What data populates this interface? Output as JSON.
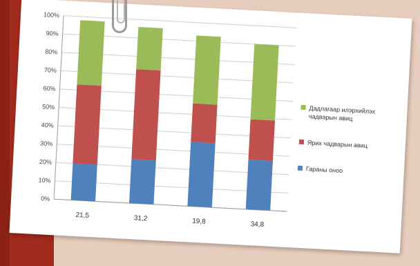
{
  "chart_data": {
    "type": "bar",
    "stacked": true,
    "percent_scale": true,
    "categories": [
      "21,5",
      "31,2",
      "19,8",
      "34,8"
    ],
    "series": [
      {
        "name": "Гараны оноо",
        "color": "#4f81bd",
        "values": [
          20,
          24,
          35,
          27
        ]
      },
      {
        "name": "Ярих чадварын авиц",
        "color": "#c0504d",
        "values": [
          43,
          49,
          21,
          22
        ]
      },
      {
        "name": "Дадлагаар илэрхийлэх чадварын авиц",
        "color": "#9bbb59",
        "values": [
          35,
          23,
          37,
          41
        ]
      }
    ],
    "legend_order": [
      2,
      1,
      0
    ],
    "yticks": [
      "0%",
      "10%",
      "20%",
      "30%",
      "40%",
      "50%",
      "60%",
      "70%",
      "80%",
      "90%",
      "100%"
    ],
    "ylim": [
      0,
      100
    ],
    "grid": true,
    "legend_position": "right"
  }
}
